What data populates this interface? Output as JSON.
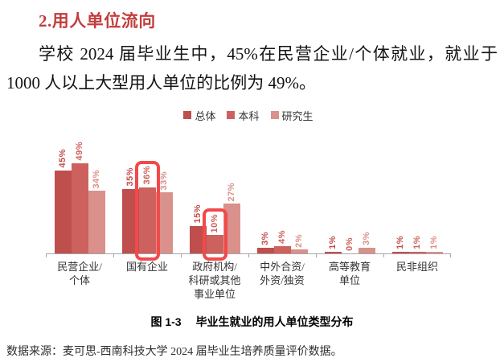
{
  "heading": {
    "text": "2.用人单位流向"
  },
  "paragraph": "学校 2024 届毕业生中，45%在民营企业/个体就业，就业于 1000 人以上大型用人单位的比例为 49%。",
  "chart_data": {
    "type": "bar",
    "title": "",
    "legend_position": "top-center",
    "grid": false,
    "ylim": [
      0,
      55
    ],
    "value_suffix": "%",
    "categories": [
      [
        "民营企业/",
        "个体"
      ],
      [
        "国有企业"
      ],
      [
        "政府机构/",
        "科研或其他",
        "事业单位"
      ],
      [
        "中外合资/",
        "外资/独资"
      ],
      [
        "高等教育",
        "单位"
      ],
      [
        "民非组织"
      ]
    ],
    "series": [
      {
        "name": "总体",
        "color": "#bf4f4d",
        "values": [
          45,
          35,
          15,
          3,
          1,
          1
        ]
      },
      {
        "name": "本科",
        "color": "#cd615d",
        "values": [
          49,
          36,
          10,
          4,
          0,
          1
        ]
      },
      {
        "name": "研究生",
        "color": "#da908b",
        "values": [
          34,
          33,
          27,
          2,
          3,
          1
        ]
      }
    ],
    "highlights": [
      {
        "category": 1,
        "series": 1,
        "label": "36%"
      },
      {
        "category": 2,
        "series": 1,
        "label": "10%"
      }
    ],
    "highlight_color": "#f2494b",
    "axis_color": "#a6a6a6"
  },
  "caption": {
    "figure_label": "图 1-3",
    "text": "毕业生就业的用人单位类型分布"
  },
  "source": "数据来源：麦可思-西南科技大学 2024 届毕业生培养质量评价数据。"
}
